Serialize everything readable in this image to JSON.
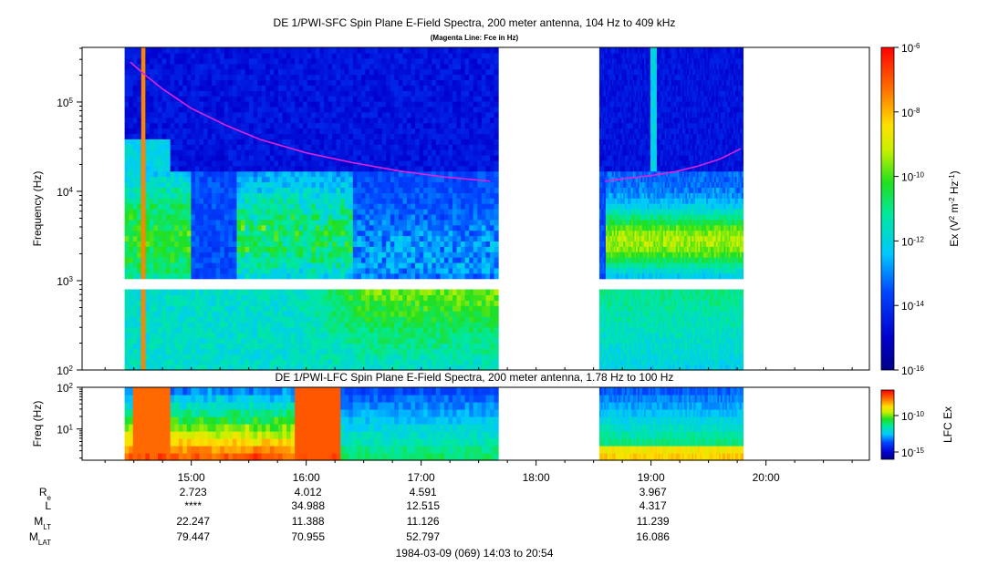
{
  "header": {
    "title": "DE 1/PWI-SFC  Spin Plane E-Field Spectra, 200 meter antenna, 104 Hz to 409 kHz",
    "subtitle": "(Magenta Line: Fce in Hz)"
  },
  "chart_data": [
    {
      "type": "heatmap",
      "panel": "SFC",
      "title": "DE 1/PWI-SFC  Spin Plane E-Field Spectra, 200 meter antenna, 104 Hz to 409 kHz",
      "subtitle": "(Magenta Line: Fce in Hz)",
      "ylabel": "Frequency (Hz)",
      "yscale": "log",
      "ylim": [
        100,
        409000
      ],
      "y_ticks": [
        {
          "v": 100,
          "label": "10^2"
        },
        {
          "v": 1000,
          "label": "10^3"
        },
        {
          "v": 10000,
          "label": "10^4"
        },
        {
          "v": 100000,
          "label": "10^5"
        }
      ],
      "xlim_hours": [
        14.05,
        20.9
      ],
      "data_intervals_hours": [
        [
          14.42,
          17.67
        ],
        [
          18.55,
          19.8
        ]
      ],
      "colorbar": {
        "label": "Ex (V^2 m^-2 Hz^-1)",
        "scale": "log",
        "range": [
          1e-16,
          1e-06
        ],
        "ticks": [
          {
            "exp": -6
          },
          {
            "exp": -8
          },
          {
            "exp": -10
          },
          {
            "exp": -12
          },
          {
            "exp": -14
          },
          {
            "exp": -16
          }
        ]
      },
      "fce_line": {
        "color": "#dd22dd",
        "segments": [
          {
            "hours": [
              14.47,
              14.6,
              14.75,
              15.0,
              15.3,
              15.6,
              16.0,
              16.4,
              16.8,
              17.2,
              17.6
            ],
            "hz": [
              280000,
              200000,
              140000,
              85000,
              55000,
              38000,
              27000,
              21000,
              17000,
              14500,
              13000
            ]
          },
          {
            "hours": [
              18.6,
              18.8,
              19.0,
              19.2,
              19.4,
              19.6,
              19.78
            ],
            "hz": [
              13000,
              14000,
              15000,
              16500,
              19000,
              23000,
              30000
            ]
          }
        ]
      }
    },
    {
      "type": "heatmap",
      "panel": "LFC",
      "title": "DE 1/PWI-LFC  Spin Plane E-Field Spectra, 200 meter antenna, 1.78 Hz to 100 Hz",
      "ylabel": "Freq (Hz)",
      "yscale": "log",
      "ylim": [
        1.78,
        100
      ],
      "y_ticks": [
        {
          "v": 10,
          "label": "10^1"
        },
        {
          "v": 100,
          "label": "10^2"
        }
      ],
      "xlim_hours": [
        14.05,
        20.9
      ],
      "data_intervals_hours": [
        [
          14.42,
          17.67
        ],
        [
          18.55,
          19.8
        ]
      ],
      "colorbar": {
        "label": "LFC Ex",
        "scale": "log",
        "ticks": [
          {
            "exp": -10
          },
          {
            "exp": -15
          }
        ]
      }
    }
  ],
  "x_axis": {
    "ticks": [
      {
        "h": 15,
        "label": "15:00"
      },
      {
        "h": 16,
        "label": "16:00"
      },
      {
        "h": 17,
        "label": "17:00"
      },
      {
        "h": 18,
        "label": "18:00"
      },
      {
        "h": 19,
        "label": "19:00"
      },
      {
        "h": 20,
        "label": "20:00"
      }
    ],
    "minor_step_minutes": 15
  },
  "ephemeris": {
    "rows": [
      {
        "label": "R",
        "sub": "e",
        "values": [
          {
            "h": 15,
            "v": "2.723"
          },
          {
            "h": 16,
            "v": "4.012"
          },
          {
            "h": 17,
            "v": "4.591"
          },
          {
            "h": 19,
            "v": "3.967"
          }
        ]
      },
      {
        "label": "L",
        "sub": "",
        "values": [
          {
            "h": 15,
            "v": "****"
          },
          {
            "h": 16,
            "v": "34.988"
          },
          {
            "h": 17,
            "v": "12.515"
          },
          {
            "h": 19,
            "v": "4.317"
          }
        ]
      },
      {
        "label": "M",
        "sub": "LT",
        "values": [
          {
            "h": 15,
            "v": "22.247"
          },
          {
            "h": 16,
            "v": "11.388"
          },
          {
            "h": 17,
            "v": "11.126"
          },
          {
            "h": 19,
            "v": "11.239"
          }
        ]
      },
      {
        "label": "M",
        "sub": "LAT",
        "values": [
          {
            "h": 15,
            "v": "79.447"
          },
          {
            "h": 16,
            "v": "70.955"
          },
          {
            "h": 17,
            "v": "52.797"
          },
          {
            "h": 19,
            "v": "16.086"
          }
        ]
      }
    ]
  },
  "footer": {
    "date_range": "1984-03-09 (069) 14:03 to 20:54"
  }
}
